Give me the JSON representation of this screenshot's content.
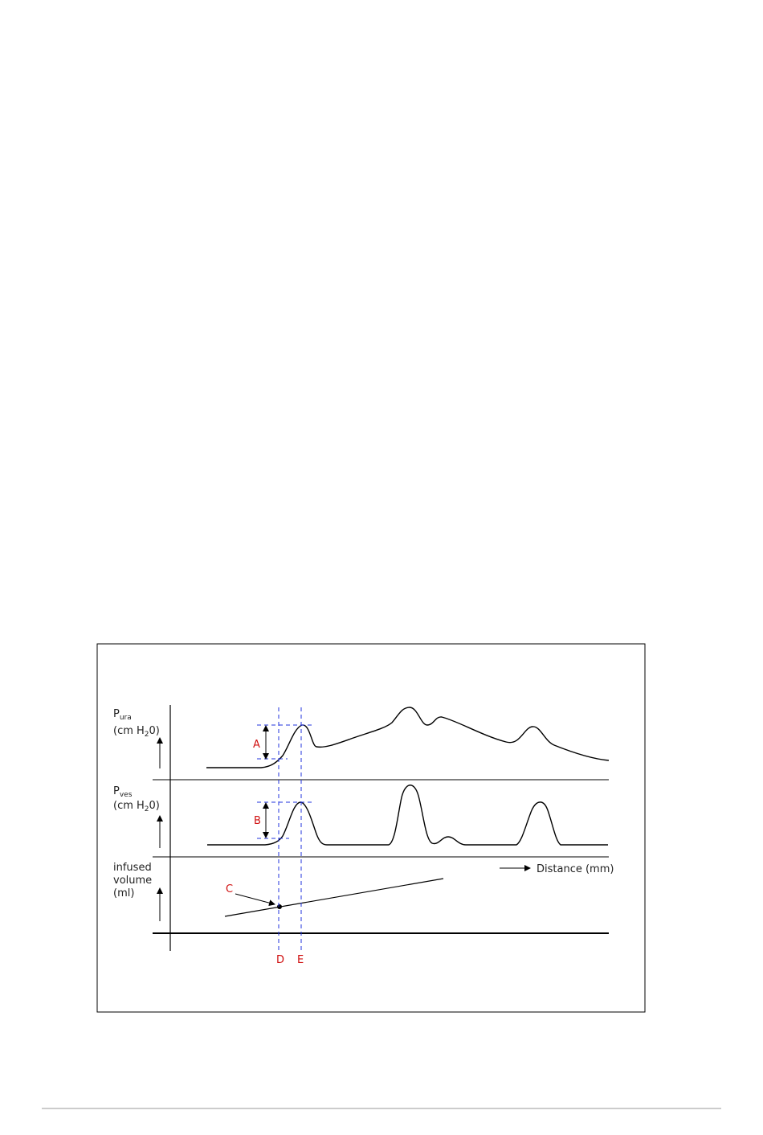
{
  "panels": [
    {
      "symbol": "P",
      "subscript": "ura",
      "unit_start": "(cm H",
      "unit_subscript": "2",
      "unit_end": "0)"
    },
    {
      "symbol": "P",
      "subscript": "ves",
      "unit_start": "(cm H",
      "unit_subscript": "2",
      "unit_end": "0)"
    }
  ],
  "volume_label": [
    "infused",
    "volume",
    "(ml)"
  ],
  "x_label": "Distance (mm)",
  "markers": [
    "A",
    "B",
    "C",
    "D",
    "E"
  ]
}
